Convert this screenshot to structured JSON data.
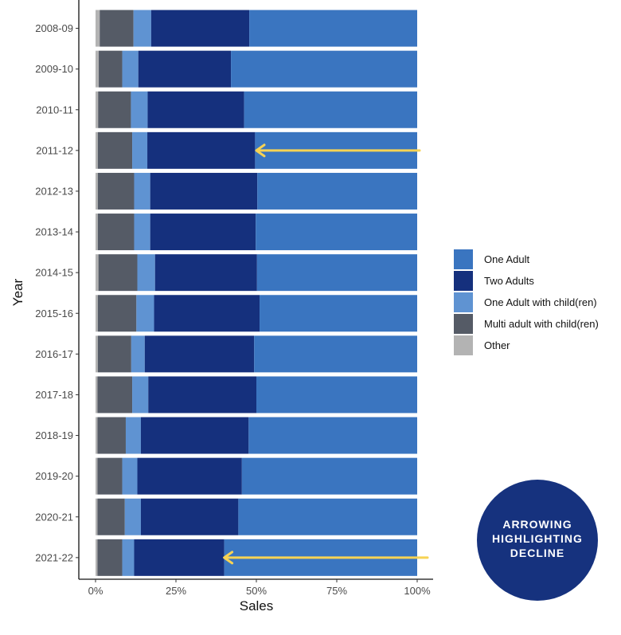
{
  "chart_data": {
    "type": "bar",
    "orientation": "horizontal",
    "stacked": "percent",
    "title": "",
    "xlabel": "Sales",
    "ylabel": "Year",
    "xlim": [
      0,
      1
    ],
    "x_ticks": [
      "0%",
      "25%",
      "50%",
      "75%",
      "100%"
    ],
    "x_tick_values": [
      0,
      0.25,
      0.5,
      0.75,
      1.0
    ],
    "categories": [
      "2008-09",
      "2009-10",
      "2010-11",
      "2011-12",
      "2012-13",
      "2013-14",
      "2014-15",
      "2015-16",
      "2016-17",
      "2017-18",
      "2018-19",
      "2019-20",
      "2020-21",
      "2021-22"
    ],
    "series": [
      {
        "name": "Other",
        "color": "#b3b3b3",
        "values": [
          0.013,
          0.01,
          0.008,
          0.007,
          0.007,
          0.007,
          0.009,
          0.007,
          0.007,
          0.006,
          0.006,
          0.006,
          0.006,
          0.006
        ]
      },
      {
        "name": "Multi adult with child(ren)",
        "color": "#555b66",
        "values": [
          0.105,
          0.073,
          0.102,
          0.107,
          0.113,
          0.113,
          0.121,
          0.12,
          0.104,
          0.108,
          0.088,
          0.077,
          0.085,
          0.077
        ]
      },
      {
        "name": "One Adult with child(ren)",
        "color": "#5f93d2",
        "values": [
          0.055,
          0.05,
          0.052,
          0.047,
          0.05,
          0.05,
          0.055,
          0.055,
          0.042,
          0.05,
          0.047,
          0.047,
          0.05,
          0.037
        ]
      },
      {
        "name": "Two Adults",
        "color": "#15307d",
        "values": [
          0.305,
          0.288,
          0.3,
          0.335,
          0.333,
          0.328,
          0.317,
          0.328,
          0.34,
          0.336,
          0.335,
          0.325,
          0.303,
          0.28
        ]
      },
      {
        "name": "One Adult",
        "color": "#3a75c0",
        "values": [
          0.522,
          0.579,
          0.538,
          0.504,
          0.497,
          0.502,
          0.498,
          0.49,
          0.507,
          0.5,
          0.524,
          0.545,
          0.556,
          0.6
        ]
      }
    ],
    "legend": {
      "placement": "right",
      "order": [
        "One Adult",
        "Two Adults",
        "One Adult with child(ren)",
        "Multi adult with child(ren)",
        "Other"
      ]
    },
    "grid": false,
    "annotations": [
      {
        "type": "arrow",
        "category": "2011-12",
        "points_to": 0.5,
        "color": "#f7d354"
      },
      {
        "type": "arrow",
        "category": "2021-22",
        "points_to": 0.4,
        "color": "#f7d354"
      }
    ]
  },
  "badge": {
    "lines": [
      "ARROWING",
      "HIGHLIGHTING",
      "DECLINE"
    ],
    "background": "#16327e",
    "text_color": "#ffffff"
  }
}
